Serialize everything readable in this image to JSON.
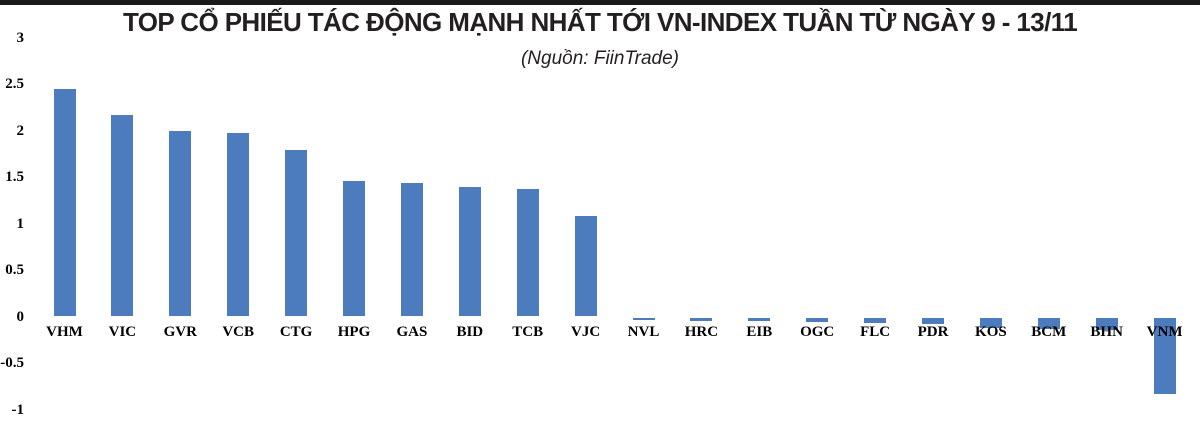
{
  "header": {
    "title": "TOP CỔ PHIẾU TÁC ĐỘNG MẠNH NHẤT TỚI VN-INDEX TUẦN TỪ NGÀY 9 - 13/11",
    "subtitle": "(Nguồn: FiinTrade)"
  },
  "colors": {
    "bar": "#4C7CBE",
    "top_strip": "#1a1a1a",
    "text": "#231f20",
    "background": "#ffffff"
  },
  "chart_data": {
    "type": "bar",
    "title": "TOP CỔ PHIẾU TÁC ĐỘNG MẠNH NHẤT TỚI VN-INDEX TUẦN TỪ NGÀY 9 - 13/11",
    "subtitle": "(Nguồn: FiinTrade)",
    "categories": [
      "VHM",
      "VIC",
      "GVR",
      "VCB",
      "CTG",
      "HPG",
      "GAS",
      "BID",
      "TCB",
      "VJC",
      "NVL",
      "HRC",
      "EIB",
      "OGC",
      "FLC",
      "PDR",
      "KOS",
      "BCM",
      "BHN",
      "VNM"
    ],
    "values": [
      2.45,
      2.17,
      1.99,
      1.97,
      1.79,
      1.46,
      1.44,
      1.39,
      1.37,
      1.08,
      -0.03,
      -0.04,
      -0.04,
      -0.05,
      -0.06,
      -0.07,
      -0.11,
      -0.12,
      -0.13,
      -0.82
    ],
    "y_tick_labels": [
      "3",
      "2.5",
      "2",
      "1.5",
      "1",
      "0.5",
      "0",
      "-0.5",
      "-1"
    ],
    "y_tick_values": [
      3,
      2.5,
      2,
      1.5,
      1,
      0.5,
      0,
      -0.5,
      -1
    ],
    "ylim": [
      -1,
      3
    ],
    "xlabel": "",
    "ylabel": "",
    "grid": false,
    "legend": false,
    "bar_color": "#4C7CBE"
  }
}
